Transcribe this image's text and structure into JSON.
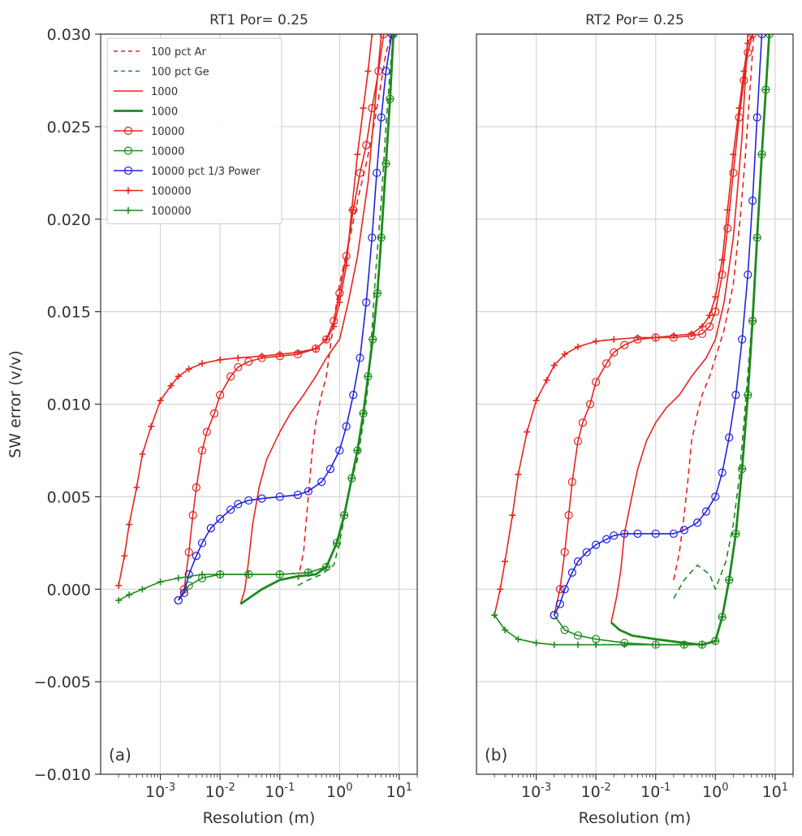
{
  "chart_data": [
    {
      "type": "line",
      "title": "RT1 Por= 0.25",
      "xlabel": "Resolution (m)",
      "ylabel": "SW error (v/v)",
      "x_scale": "log",
      "xlim": [
        0.0001,
        20
      ],
      "ylim": [
        -0.01,
        0.03
      ],
      "x_ticks": [
        "10-3",
        "10-2",
        "10-1",
        "100",
        "101"
      ],
      "y_ticks": [
        "0.030",
        "0.025",
        "0.020",
        "0.015",
        "0.010",
        "0.005",
        "0.000",
        "−0.005",
        "−0.010"
      ],
      "grid": true,
      "panel_label": "(a)",
      "legend": {
        "placement": "top-left",
        "entries": [
          {
            "label": "100 pct Ar",
            "color": "#e8231d",
            "style": "dashed",
            "marker": "none"
          },
          {
            "label": "100 pct Ge",
            "color": "#1e8a1e",
            "style": "dashed",
            "marker": "none"
          },
          {
            "label": "1000",
            "color": "#e8231d",
            "style": "solid",
            "marker": "none"
          },
          {
            "label": "1000",
            "color": "#1e8a1e",
            "style": "solid-thick",
            "marker": "none"
          },
          {
            "label": "10000",
            "color": "#e8231d",
            "style": "solid",
            "marker": "circle"
          },
          {
            "label": "10000",
            "color": "#1e8a1e",
            "style": "solid",
            "marker": "circle"
          },
          {
            "label": "10000 pct 1/3 Power",
            "color": "#1f22e0",
            "style": "solid",
            "marker": "circle"
          },
          {
            "label": "100000",
            "color": "#e8231d",
            "style": "solid",
            "marker": "plus"
          },
          {
            "label": "100000",
            "color": "#1e8a1e",
            "style": "solid",
            "marker": "plus"
          }
        ]
      },
      "series": [
        {
          "color": "#e8231d",
          "style": "dashed",
          "marker": "none",
          "x": [
            0.2,
            0.25,
            0.3,
            0.35,
            0.4,
            0.5,
            0.6,
            0.8,
            1.0,
            1.5,
            2.0,
            2.8,
            3.5,
            4.5,
            6.0,
            7.5
          ],
          "y": [
            0.0005,
            0.002,
            0.005,
            0.0075,
            0.009,
            0.0105,
            0.0115,
            0.0145,
            0.0165,
            0.019,
            0.021,
            0.023,
            0.0245,
            0.0265,
            0.029,
            0.03
          ]
        },
        {
          "color": "#1e8a1e",
          "style": "dashed",
          "marker": "none",
          "x": [
            0.2,
            0.3,
            0.5,
            0.8,
            1.0,
            1.3,
            1.6,
            2.0,
            2.5,
            3.0,
            3.5,
            4.0,
            5.0,
            6.0,
            7.0,
            8.0
          ],
          "y": [
            0.0002,
            0.0005,
            0.0008,
            0.0013,
            0.0025,
            0.0045,
            0.006,
            0.007,
            0.009,
            0.011,
            0.014,
            0.017,
            0.021,
            0.025,
            0.028,
            0.03
          ]
        },
        {
          "color": "#e8231d",
          "style": "solid",
          "marker": "none",
          "x": [
            0.022,
            0.026,
            0.03,
            0.035,
            0.045,
            0.06,
            0.1,
            0.15,
            0.25,
            0.4,
            0.6,
            1.0,
            1.4,
            2.0,
            3.0,
            4.0,
            5.0
          ],
          "y": [
            -0.0008,
            0.0,
            0.0015,
            0.0035,
            0.0055,
            0.007,
            0.0085,
            0.0095,
            0.0105,
            0.0115,
            0.0125,
            0.0135,
            0.0155,
            0.018,
            0.022,
            0.0265,
            0.03
          ]
        },
        {
          "color": "#1e8a1e",
          "style": "solid-thick",
          "marker": "none",
          "x": [
            0.022,
            0.03,
            0.05,
            0.1,
            0.2,
            0.4,
            0.6,
            0.9,
            1.2,
            1.6,
            2.0,
            2.5,
            3.0,
            3.6,
            4.3,
            5.0,
            6.0,
            7.0,
            8.0
          ],
          "y": [
            -0.0008,
            -0.0005,
            0.0,
            0.0005,
            0.0007,
            0.0008,
            0.0012,
            0.0025,
            0.004,
            0.006,
            0.0075,
            0.0095,
            0.0115,
            0.0135,
            0.016,
            0.019,
            0.023,
            0.0265,
            0.03
          ]
        },
        {
          "color": "#e8231d",
          "style": "solid",
          "marker": "circle",
          "x": [
            0.002,
            0.0025,
            0.003,
            0.0035,
            0.004,
            0.005,
            0.006,
            0.008,
            0.01,
            0.015,
            0.02,
            0.03,
            0.05,
            0.1,
            0.2,
            0.4,
            0.6,
            0.8,
            1.0,
            1.3,
            1.7,
            2.2,
            2.8,
            3.5,
            4.5,
            5.5
          ],
          "y": [
            -0.0006,
            0.0,
            0.002,
            0.004,
            0.0055,
            0.0075,
            0.0085,
            0.0095,
            0.0105,
            0.0115,
            0.012,
            0.0123,
            0.0125,
            0.0126,
            0.0127,
            0.013,
            0.0135,
            0.0145,
            0.016,
            0.018,
            0.0205,
            0.0225,
            0.024,
            0.026,
            0.028,
            0.03
          ]
        },
        {
          "color": "#1e8a1e",
          "style": "solid",
          "marker": "circle",
          "x": [
            0.002,
            0.003,
            0.005,
            0.01,
            0.03,
            0.1,
            0.3,
            0.6,
            0.9,
            1.2,
            1.6,
            2.0,
            2.5,
            3.0,
            3.6,
            4.3,
            5.0,
            6.0,
            7.0,
            8.0
          ],
          "y": [
            -0.0006,
            0.0002,
            0.0006,
            0.0008,
            0.0008,
            0.0008,
            0.0009,
            0.0012,
            0.0025,
            0.004,
            0.006,
            0.0075,
            0.0095,
            0.0115,
            0.0135,
            0.016,
            0.019,
            0.023,
            0.0265,
            0.03
          ]
        },
        {
          "color": "#1f22e0",
          "style": "solid",
          "marker": "circle",
          "x": [
            0.002,
            0.0025,
            0.003,
            0.004,
            0.005,
            0.007,
            0.01,
            0.015,
            0.02,
            0.03,
            0.05,
            0.1,
            0.2,
            0.3,
            0.5,
            0.7,
            1.0,
            1.3,
            1.7,
            2.2,
            2.8,
            3.5,
            4.2,
            5.0,
            6.0,
            7.5
          ],
          "y": [
            -0.0006,
            -0.0002,
            0.0008,
            0.0018,
            0.0025,
            0.0033,
            0.0038,
            0.0043,
            0.0046,
            0.0048,
            0.0049,
            0.005,
            0.0051,
            0.0053,
            0.0058,
            0.0065,
            0.0075,
            0.0088,
            0.0105,
            0.0125,
            0.0155,
            0.019,
            0.0225,
            0.0255,
            0.028,
            0.03
          ]
        },
        {
          "color": "#e8231d",
          "style": "solid",
          "marker": "plus",
          "x": [
            0.0002,
            0.00025,
            0.0003,
            0.0004,
            0.0005,
            0.0007,
            0.001,
            0.0015,
            0.002,
            0.003,
            0.005,
            0.01,
            0.02,
            0.05,
            0.1,
            0.2,
            0.4,
            0.6,
            0.8,
            1.0,
            1.3,
            1.6,
            2.0,
            2.5,
            3.0,
            3.5
          ],
          "y": [
            0.0002,
            0.0018,
            0.0035,
            0.0055,
            0.0073,
            0.0088,
            0.0102,
            0.011,
            0.0115,
            0.0119,
            0.0122,
            0.0124,
            0.0125,
            0.0126,
            0.0127,
            0.0128,
            0.013,
            0.0135,
            0.0142,
            0.0155,
            0.0175,
            0.0205,
            0.0235,
            0.026,
            0.028,
            0.03
          ]
        },
        {
          "color": "#1e8a1e",
          "style": "solid",
          "marker": "plus",
          "x": [
            0.0002,
            0.0003,
            0.0005,
            0.001,
            0.002,
            0.005,
            0.01,
            0.03,
            0.1,
            0.3,
            0.6,
            0.9,
            1.2,
            1.6,
            2.0,
            2.5,
            3.0,
            3.6,
            4.3,
            5.0,
            6.0,
            7.0,
            8.0
          ],
          "y": [
            -0.0006,
            -0.0003,
            0.0,
            0.0004,
            0.0006,
            0.0008,
            0.0008,
            0.0008,
            0.0008,
            0.0009,
            0.0012,
            0.0025,
            0.004,
            0.006,
            0.0075,
            0.0095,
            0.0115,
            0.0135,
            0.016,
            0.019,
            0.023,
            0.0265,
            0.03
          ]
        }
      ]
    },
    {
      "type": "line",
      "title": "RT2 Por= 0.25",
      "xlabel": "Resolution (m)",
      "ylabel": "",
      "x_scale": "log",
      "xlim": [
        0.0001,
        20
      ],
      "ylim": [
        -0.01,
        0.03
      ],
      "x_ticks": [
        "10-3",
        "10-2",
        "10-1",
        "100",
        "101"
      ],
      "grid": true,
      "panel_label": "(b)",
      "series": [
        {
          "color": "#e8231d",
          "style": "dashed",
          "marker": "none",
          "x": [
            0.2,
            0.25,
            0.3,
            0.35,
            0.4,
            0.5,
            0.6,
            0.8,
            1.0,
            1.4,
            2.0,
            2.6,
            3.2,
            3.8,
            4.4
          ],
          "y": [
            0.0005,
            0.002,
            0.004,
            0.006,
            0.008,
            0.0095,
            0.0105,
            0.0115,
            0.0125,
            0.014,
            0.0165,
            0.02,
            0.0235,
            0.027,
            0.03
          ]
        },
        {
          "color": "#1e8a1e",
          "style": "dashed",
          "marker": "none",
          "x": [
            0.2,
            0.3,
            0.5,
            0.8,
            1.0,
            1.5,
            2.0,
            2.5,
            3.0,
            4.0,
            5.0,
            6.0,
            7.0,
            8.0
          ],
          "y": [
            -0.0005,
            0.0005,
            0.0013,
            0.0008,
            0.0,
            0.0015,
            0.0035,
            0.006,
            0.009,
            0.014,
            0.019,
            0.0235,
            0.027,
            0.03
          ]
        },
        {
          "color": "#e8231d",
          "style": "solid",
          "marker": "none",
          "x": [
            0.018,
            0.022,
            0.026,
            0.03,
            0.04,
            0.05,
            0.07,
            0.1,
            0.15,
            0.25,
            0.4,
            0.7,
            1.0,
            1.4,
            2.0,
            2.8,
            3.5
          ],
          "y": [
            -0.0018,
            -0.0005,
            0.001,
            0.003,
            0.005,
            0.0065,
            0.008,
            0.009,
            0.0098,
            0.0105,
            0.0115,
            0.0125,
            0.0135,
            0.0155,
            0.019,
            0.0245,
            0.03
          ]
        },
        {
          "color": "#1e8a1e",
          "style": "solid-thick",
          "marker": "none",
          "x": [
            0.018,
            0.025,
            0.04,
            0.1,
            0.3,
            0.6,
            1.0,
            1.3,
            1.7,
            2.2,
            2.8,
            3.5,
            4.2,
            5.0,
            6.0,
            7.0,
            8.0
          ],
          "y": [
            -0.0018,
            -0.0022,
            -0.0025,
            -0.0027,
            -0.0029,
            -0.003,
            -0.0028,
            -0.0015,
            0.0005,
            0.003,
            0.0065,
            0.0105,
            0.0145,
            0.019,
            0.0235,
            0.027,
            0.03
          ]
        },
        {
          "color": "#e8231d",
          "style": "solid",
          "marker": "circle",
          "x": [
            0.002,
            0.0025,
            0.003,
            0.0035,
            0.004,
            0.005,
            0.006,
            0.008,
            0.01,
            0.015,
            0.02,
            0.03,
            0.05,
            0.1,
            0.2,
            0.4,
            0.6,
            0.8,
            1.0,
            1.3,
            1.6,
            2.0,
            2.5,
            3.0,
            3.5,
            4.2
          ],
          "y": [
            -0.0014,
            0.0,
            0.002,
            0.004,
            0.0058,
            0.008,
            0.009,
            0.01,
            0.0112,
            0.0122,
            0.0128,
            0.0132,
            0.0135,
            0.0136,
            0.0136,
            0.0137,
            0.0138,
            0.0142,
            0.015,
            0.017,
            0.0195,
            0.0225,
            0.0255,
            0.0275,
            0.029,
            0.03
          ]
        },
        {
          "color": "#1e8a1e",
          "style": "solid",
          "marker": "circle",
          "x": [
            0.002,
            0.003,
            0.005,
            0.01,
            0.03,
            0.1,
            0.3,
            0.6,
            1.0,
            1.3,
            1.7,
            2.2,
            2.8,
            3.5,
            4.2,
            5.0,
            6.0,
            7.0,
            8.0
          ],
          "y": [
            -0.0014,
            -0.0022,
            -0.0025,
            -0.0027,
            -0.0029,
            -0.003,
            -0.003,
            -0.003,
            -0.0028,
            -0.0015,
            0.0005,
            0.003,
            0.0065,
            0.0105,
            0.0145,
            0.019,
            0.0235,
            0.027,
            0.03
          ]
        },
        {
          "color": "#1f22e0",
          "style": "solid",
          "marker": "circle",
          "x": [
            0.002,
            0.0025,
            0.003,
            0.004,
            0.005,
            0.007,
            0.01,
            0.015,
            0.02,
            0.03,
            0.05,
            0.1,
            0.2,
            0.3,
            0.5,
            0.7,
            1.0,
            1.3,
            1.7,
            2.2,
            2.8,
            3.5,
            4.2,
            5.0,
            6.0
          ],
          "y": [
            -0.0014,
            -0.0008,
            0.0,
            0.0009,
            0.0015,
            0.002,
            0.0024,
            0.0027,
            0.0029,
            0.003,
            0.003,
            0.003,
            0.003,
            0.0032,
            0.0036,
            0.0042,
            0.005,
            0.0063,
            0.0082,
            0.0105,
            0.0135,
            0.017,
            0.021,
            0.0255,
            0.03
          ]
        },
        {
          "color": "#e8231d",
          "style": "solid",
          "marker": "plus",
          "x": [
            0.0002,
            0.00025,
            0.0003,
            0.0004,
            0.0005,
            0.0007,
            0.001,
            0.0015,
            0.002,
            0.003,
            0.005,
            0.01,
            0.02,
            0.05,
            0.1,
            0.2,
            0.4,
            0.6,
            0.8,
            1.0,
            1.3,
            1.6,
            2.0,
            2.5,
            3.0,
            3.5,
            4.2
          ],
          "y": [
            -0.0014,
            0.0,
            0.0015,
            0.004,
            0.0062,
            0.0085,
            0.0102,
            0.0113,
            0.0121,
            0.0127,
            0.0131,
            0.0134,
            0.0135,
            0.0136,
            0.0136,
            0.0137,
            0.0138,
            0.0142,
            0.0148,
            0.0158,
            0.0178,
            0.0205,
            0.0235,
            0.026,
            0.028,
            0.0295,
            0.03
          ]
        },
        {
          "color": "#1e8a1e",
          "style": "solid",
          "marker": "plus",
          "x": [
            0.0002,
            0.0003,
            0.0005,
            0.001,
            0.002,
            0.005,
            0.01,
            0.03,
            0.1,
            0.3,
            0.6,
            1.0,
            1.3,
            1.7,
            2.2,
            2.8,
            3.5,
            4.2,
            5.0,
            6.0,
            7.0,
            8.0
          ],
          "y": [
            -0.0014,
            -0.0022,
            -0.0027,
            -0.0029,
            -0.003,
            -0.003,
            -0.003,
            -0.003,
            -0.003,
            -0.003,
            -0.003,
            -0.0028,
            -0.0015,
            0.0005,
            0.003,
            0.0065,
            0.0105,
            0.0145,
            0.019,
            0.0235,
            0.027,
            0.03
          ]
        }
      ]
    }
  ]
}
